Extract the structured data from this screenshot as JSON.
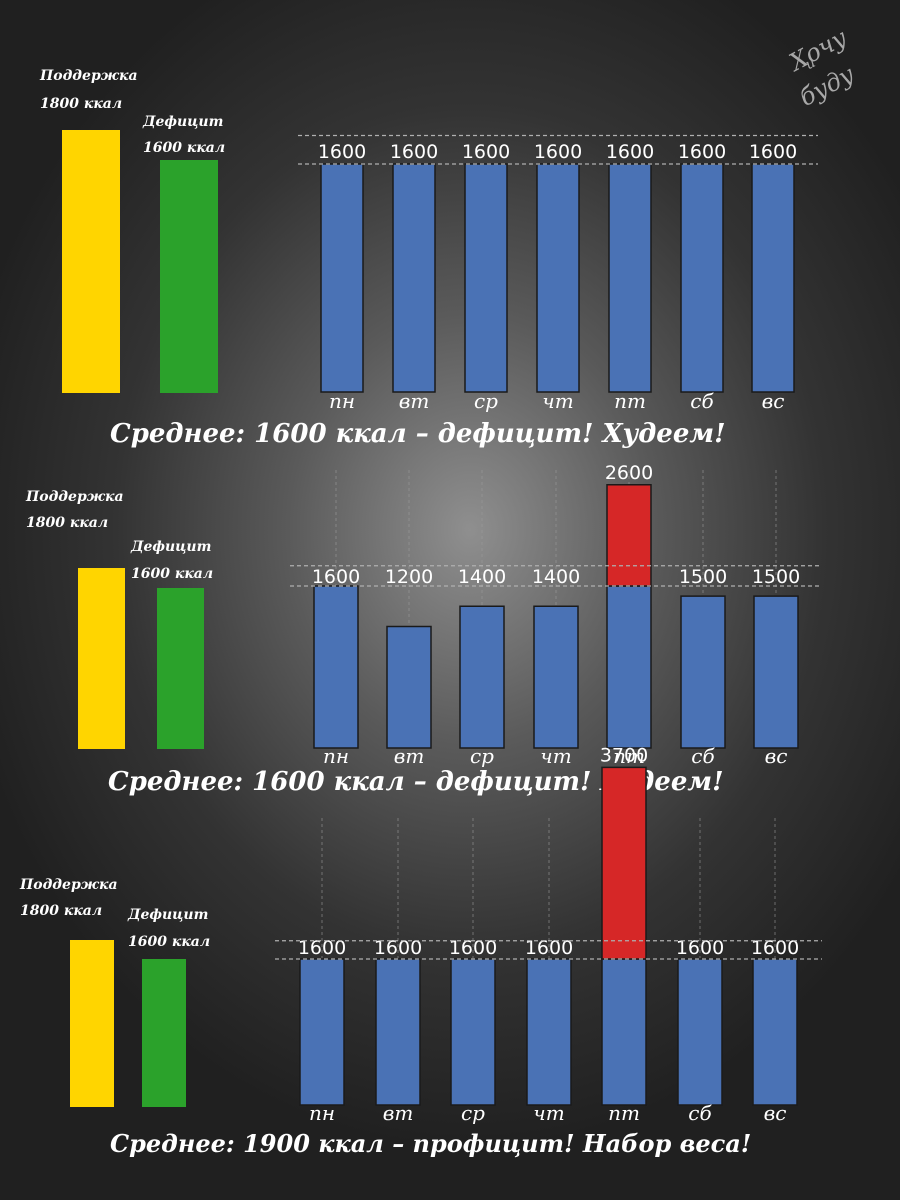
{
  "logo": {
    "line1": "Хочу",
    "line2": "и",
    "line3": "буду"
  },
  "chart_data": [
    {
      "type": "bar",
      "categories": [
        "пн",
        "вт",
        "ср",
        "чт",
        "пт",
        "сб",
        "вс"
      ],
      "values": [
        1600,
        1600,
        1600,
        1600,
        1600,
        1600,
        1600
      ],
      "value_labels": [
        "1600",
        "1600",
        "1600",
        "1600",
        "1600",
        "1600",
        "1600"
      ],
      "excess": [
        0,
        0,
        0,
        0,
        0,
        0,
        0
      ],
      "reference": {
        "maintenance": {
          "label": "Поддержка",
          "kcal": "1800 ккал",
          "value": 1800
        },
        "deficit": {
          "label": "Дефицит",
          "kcal": "1600 ккал",
          "value": 1600
        }
      },
      "caption": "Среднее: 1600 ккал – дефицит!  Худеем!",
      "colors": {
        "bar": "#4a72b5",
        "excess": "#d62727",
        "maintenance": "#ffd500",
        "deficit": "#2ba22b"
      }
    },
    {
      "type": "bar",
      "categories": [
        "пн",
        "вт",
        "ср",
        "чт",
        "пт",
        "сб",
        "вс"
      ],
      "values": [
        1600,
        1200,
        1400,
        1400,
        2600,
        1500,
        1500
      ],
      "value_labels": [
        "1600",
        "1200",
        "1400",
        "1400",
        "2600",
        "1500",
        "1500"
      ],
      "excess": [
        0,
        0,
        0,
        0,
        1000,
        0,
        0
      ],
      "reference": {
        "maintenance": {
          "label": "Поддержка",
          "kcal": "1800 ккал",
          "value": 1800
        },
        "deficit": {
          "label": "Дефицит",
          "kcal": "1600 ккал",
          "value": 1600
        }
      },
      "caption": "Среднее: 1600 ккал – дефицит! Худеем!",
      "colors": {
        "bar": "#4a72b5",
        "excess": "#d62727",
        "maintenance": "#ffd500",
        "deficit": "#2ba22b"
      }
    },
    {
      "type": "bar",
      "categories": [
        "пн",
        "вт",
        "ср",
        "чт",
        "пт",
        "сб",
        "вс"
      ],
      "values": [
        1600,
        1600,
        1600,
        1600,
        3700,
        1600,
        1600
      ],
      "value_labels": [
        "1600",
        "1600",
        "1600",
        "1600",
        "3700",
        "1600",
        "1600"
      ],
      "excess": [
        0,
        0,
        0,
        0,
        2100,
        0,
        0
      ],
      "reference": {
        "maintenance": {
          "label": "Поддержка",
          "kcal": "1800 ккал",
          "value": 1800
        },
        "deficit": {
          "label": "Дефицит",
          "kcal": "1600 ккал",
          "value": 1600
        }
      },
      "caption": "Среднее: 1900 ккал – профицит! Набор веса!",
      "colors": {
        "bar": "#4a72b5",
        "excess": "#d62727",
        "maintenance": "#ffd500",
        "deficit": "#2ba22b"
      }
    }
  ]
}
